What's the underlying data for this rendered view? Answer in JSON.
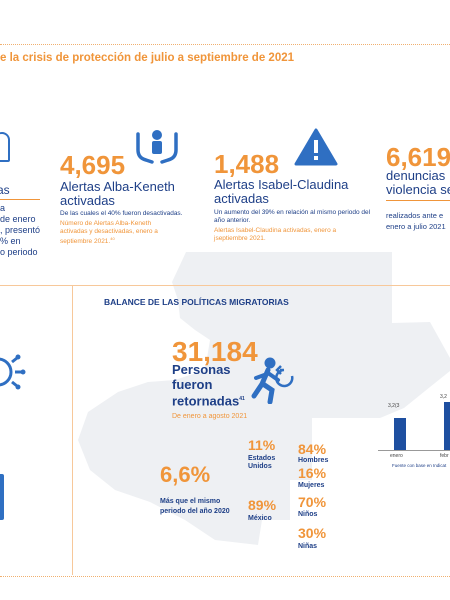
{
  "header": {
    "title_fragment": "e la crisis de protección de julio a septiembre de 2021"
  },
  "left_strip": {
    "line1": "as",
    "line2": "a",
    "line3": "de enero",
    "line4": ", presentó",
    "line5": "% en",
    "line6": "o periodo"
  },
  "alba": {
    "number": "4,695",
    "label": "Alertas Alba-Keneth activadas",
    "note": "De las cuales el 40% fueron desactivadas.",
    "note_orange": "Número de Alertas Alba-Keneth activadas y desactivadas, enero a septiembre 2021.",
    "footnote": "40"
  },
  "isabel": {
    "number": "1,488",
    "label": "Alertas Isabel-Claudina activadas",
    "note": "Un aumento del 39% en relación al mismo periodo del año anterior.",
    "note_orange": "Alertas Isabel-Claudina activadas, enero a jseptiembre  2021."
  },
  "denuncias": {
    "number": "6,619",
    "label": "denuncias violencia se",
    "note": "realizados ante e enero a julio 2021"
  },
  "balance": {
    "title": "BALANCE DE LAS POLÍTICAS MIGRATORIAS",
    "number": "31,184",
    "label": "Personas fueron retornadas",
    "footnote": "41",
    "period": "De enero a agosto 2021",
    "increase_pct": "6,6%",
    "increase_label": "Más que el mismo periodo del año 2020",
    "usa_pct": "11%",
    "usa_label": "Estados Unidos",
    "mex_pct": "89%",
    "mex_label": "México",
    "hombres_pct": "84%",
    "hombres_label": "Hombres",
    "mujeres_pct": "16%",
    "mujeres_label": "Mujeres",
    "ninos_pct": "70%",
    "ninos_label": "Niños",
    "ninas_pct": "30%",
    "ninas_label": "Niñas"
  },
  "mini_chart": {
    "val1": "3,2(3",
    "val2": "3,2",
    "cat1": "enero",
    "cat2": "febr",
    "source": "Fuente con base en Indicat"
  },
  "icons": [
    "family-icon",
    "warning-icon",
    "virus-icon",
    "runner-icon",
    "cane-icon"
  ]
}
